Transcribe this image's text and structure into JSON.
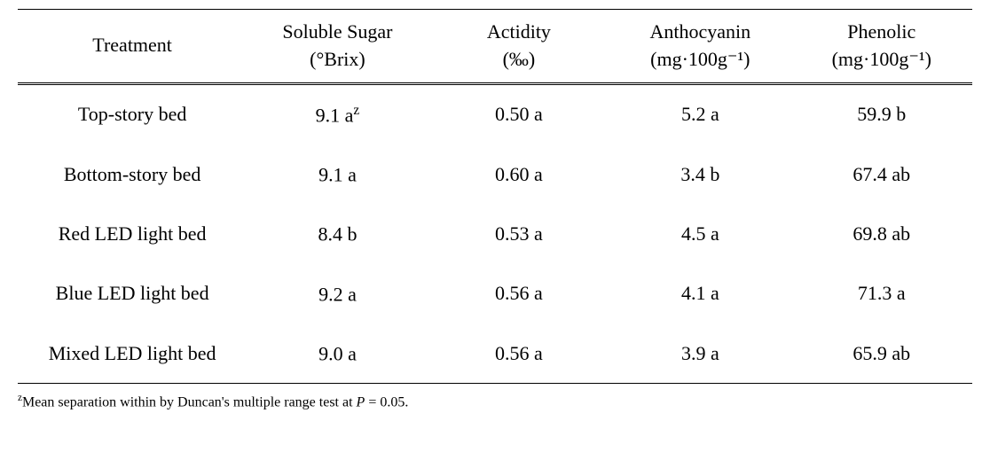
{
  "table": {
    "columns": [
      {
        "line1": "Treatment",
        "line2": ""
      },
      {
        "line1": "Soluble Sugar",
        "line2": "(°Brix)"
      },
      {
        "line1": "Actidity",
        "line2": "(‰)"
      },
      {
        "line1": "Anthocyanin",
        "line2": "(mg·100g⁻¹)"
      },
      {
        "line1": "Phenolic",
        "line2": "(mg·100g⁻¹)"
      }
    ],
    "col_widths": [
      "24%",
      "19%",
      "19%",
      "19%",
      "19%"
    ],
    "rows": [
      {
        "treatment": "Top-story bed",
        "sugar": "9.1 a",
        "sugar_sup": "z",
        "acidity": "0.50 a",
        "anthocyanin": "5.2 a",
        "phenolic": "59.9 b"
      },
      {
        "treatment": "Bottom-story bed",
        "sugar": "9.1 a",
        "sugar_sup": "",
        "acidity": "0.60 a",
        "anthocyanin": "3.4 b",
        "phenolic": "67.4 ab"
      },
      {
        "treatment": "Red LED light bed",
        "sugar": "8.4 b",
        "sugar_sup": "",
        "acidity": "0.53 a",
        "anthocyanin": "4.5 a",
        "phenolic": "69.8 ab"
      },
      {
        "treatment": "Blue LED light bed",
        "sugar": "9.2 a",
        "sugar_sup": "",
        "acidity": "0.56 a",
        "anthocyanin": "4.1 a",
        "phenolic": "71.3  a"
      },
      {
        "treatment": "Mixed LED light bed",
        "sugar": "9.0 a",
        "sugar_sup": "",
        "acidity": "0.56 a",
        "anthocyanin": "3.9 a",
        "phenolic": "65.9 ab"
      }
    ]
  },
  "footnote": {
    "sup": "z",
    "prefix": "Mean separation within by Duncan's multiple range test at ",
    "p_symbol": "P",
    "suffix": " = 0.05."
  },
  "colors": {
    "background": "#ffffff",
    "text": "#000000",
    "border": "#000000"
  },
  "typography": {
    "cell_fontsize": 22,
    "footnote_fontsize": 16,
    "font_family": "Times New Roman, serif"
  }
}
